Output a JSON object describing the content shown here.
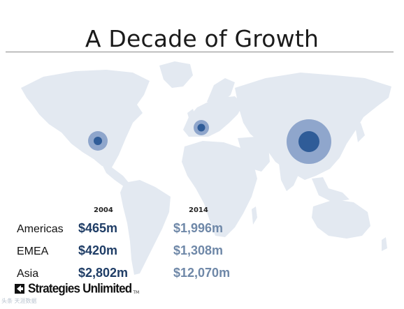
{
  "slide": {
    "title": "A Decade of Growth",
    "columns": [
      "2004",
      "2014"
    ],
    "rows": [
      {
        "region": "Americas",
        "v2004": "$465m",
        "v2014": "$1,996m"
      },
      {
        "region": "EMEA",
        "v2004": "$420m",
        "v2014": "$1,308m"
      },
      {
        "region": "Asia",
        "v2004": "$2,802m",
        "v2014": "$12,070m"
      }
    ],
    "brand": {
      "name": "Strategies Unlimited",
      "tm": "TM"
    },
    "watermark": "头条 天涯数据"
  },
  "colors": {
    "land": "#e3e9f1",
    "bubble_outer": "#8fa6cc",
    "bubble_inner": "#2f5c98",
    "value_2004": "#1f3d66",
    "value_2014": "#6f88a8"
  }
}
